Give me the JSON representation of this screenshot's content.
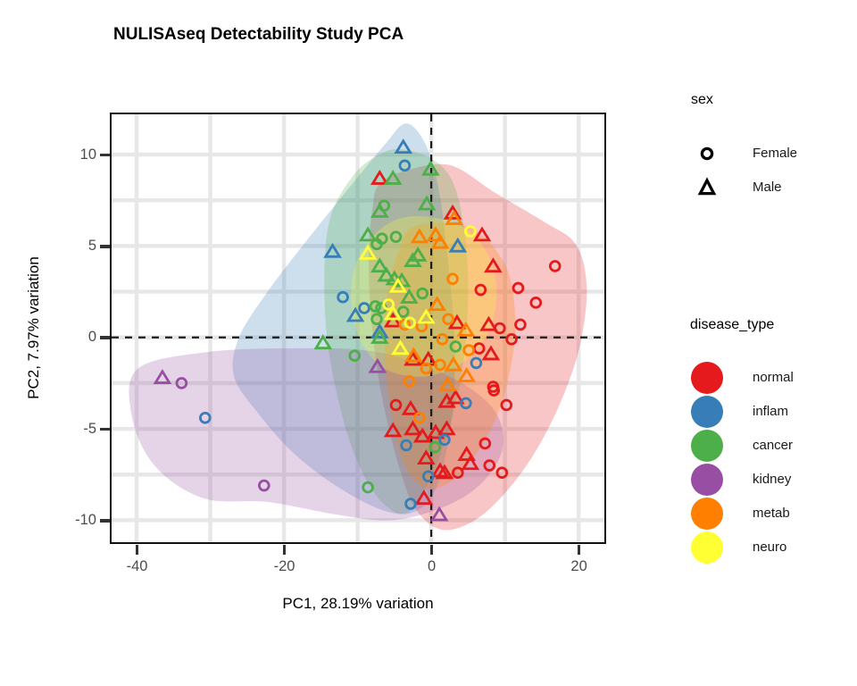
{
  "title": "NULISAseq Detectability Study PCA",
  "axes": {
    "x": {
      "label": "PC1, 28.19% variation",
      "ticks": [
        -40,
        -20,
        0,
        20
      ],
      "grid_ticks": [
        -40,
        -30,
        -20,
        -10,
        0,
        10,
        20
      ],
      "range": [
        -43.4,
        23.5
      ]
    },
    "y": {
      "label": "PC2, 7.97% variation",
      "ticks": [
        -10,
        -5,
        0,
        5,
        10
      ],
      "grid_ticks": [
        -10,
        -7.5,
        -5,
        -2.5,
        0,
        2.5,
        5,
        7.5,
        10
      ],
      "range": [
        -11.2,
        12.2
      ]
    }
  },
  "style": {
    "grid_color": "#E7E7E7",
    "panel_border": "#111111",
    "tick_color": "#333333",
    "tick_label_color": "#4D4D4D",
    "dashed_line_color": "#1C1C1C",
    "hull_opacity": 0.25
  },
  "legend": {
    "sex": {
      "title": "sex",
      "items": [
        {
          "label": "Female",
          "shape": "circle"
        },
        {
          "label": "Male",
          "shape": "triangle"
        }
      ]
    },
    "disease_type": {
      "title": "disease_type",
      "items": [
        {
          "label": "normal",
          "color": "#E41A1C"
        },
        {
          "label": "inflam",
          "color": "#377EB8"
        },
        {
          "label": "cancer",
          "color": "#4DAF4A"
        },
        {
          "label": "kidney",
          "color": "#984EA3"
        },
        {
          "label": "metab",
          "color": "#FF7F00"
        },
        {
          "label": "neuro",
          "color": "#FFFF33"
        }
      ]
    }
  },
  "chart_data": {
    "type": "scatter",
    "title": "NULISAseq Detectability Study PCA",
    "xlabel": "PC1, 28.19% variation",
    "ylabel": "PC2, 7.97% variation",
    "xlim": [
      -43.4,
      23.5
    ],
    "ylim": [
      -11.2,
      12.2
    ],
    "grid": "on",
    "legend_position": "right",
    "shape_legend": {
      "Female": "circle",
      "Male": "triangle"
    },
    "reference_lines": {
      "vertical_x": 0,
      "horizontal_y": 0,
      "style": "dashed"
    },
    "series": [
      {
        "name": "normal",
        "color": "#E41A1C",
        "points": [
          [
            -7.0,
            8.7,
            "t"
          ],
          [
            2.9,
            6.8,
            "t"
          ],
          [
            6.9,
            5.6,
            "t"
          ],
          [
            16.8,
            3.9,
            "c"
          ],
          [
            8.4,
            3.9,
            "t"
          ],
          [
            11.8,
            2.7,
            "c"
          ],
          [
            14.2,
            1.9,
            "c"
          ],
          [
            12.1,
            0.7,
            "c"
          ],
          [
            9.3,
            0.5,
            "c"
          ],
          [
            10.9,
            -0.1,
            "c"
          ],
          [
            8.5,
            -2.9,
            "c"
          ],
          [
            10.2,
            -3.7,
            "c"
          ],
          [
            -2.5,
            -1.2,
            "t"
          ],
          [
            -4.8,
            -3.7,
            "c"
          ],
          [
            -2.8,
            -3.9,
            "t"
          ],
          [
            3.3,
            -3.3,
            "t"
          ],
          [
            -5.2,
            -5.1,
            "t"
          ],
          [
            -2.5,
            -5.0,
            "t"
          ],
          [
            -1.2,
            -5.4,
            "t"
          ],
          [
            0.6,
            -5.2,
            "t"
          ],
          [
            2.1,
            -5.0,
            "t"
          ],
          [
            -0.7,
            -6.6,
            "t"
          ],
          [
            1.2,
            -7.3,
            "t"
          ],
          [
            7.3,
            -5.8,
            "c"
          ],
          [
            5.3,
            -6.9,
            "t"
          ],
          [
            7.9,
            -7.0,
            "c"
          ],
          [
            9.6,
            -7.4,
            "c"
          ],
          [
            1.8,
            -7.4,
            "t"
          ],
          [
            3.6,
            -7.4,
            "c"
          ],
          [
            -1.0,
            -8.8,
            "t"
          ],
          [
            4.8,
            -6.4,
            "t"
          ],
          [
            8.4,
            -2.7,
            "c"
          ],
          [
            6.5,
            -0.6,
            "c"
          ],
          [
            3.5,
            0.8,
            "t"
          ],
          [
            7.8,
            0.7,
            "t"
          ],
          [
            -0.4,
            -1.2,
            "t"
          ],
          [
            2.1,
            -3.5,
            "t"
          ],
          [
            -5.2,
            0.9,
            "t"
          ],
          [
            6.7,
            2.6,
            "c"
          ],
          [
            8.1,
            -0.9,
            "t"
          ]
        ]
      },
      {
        "name": "inflam",
        "color": "#377EB8",
        "points": [
          [
            -3.8,
            10.4,
            "t"
          ],
          [
            -3.6,
            9.4,
            "c"
          ],
          [
            -13.4,
            4.7,
            "t"
          ],
          [
            -12.0,
            2.2,
            "c"
          ],
          [
            -10.3,
            1.2,
            "t"
          ],
          [
            -9.1,
            1.6,
            "c"
          ],
          [
            -7.0,
            0.3,
            "t"
          ],
          [
            -30.7,
            -4.4,
            "c"
          ],
          [
            4.7,
            -3.6,
            "c"
          ],
          [
            -3.4,
            -5.9,
            "c"
          ],
          [
            -0.4,
            -7.6,
            "c"
          ],
          [
            -2.8,
            -9.1,
            "c"
          ],
          [
            1.8,
            -5.6,
            "c"
          ],
          [
            3.6,
            5.0,
            "t"
          ],
          [
            6.1,
            -1.4,
            "c"
          ]
        ]
      },
      {
        "name": "cancer",
        "color": "#4DAF4A",
        "points": [
          [
            -5.2,
            8.7,
            "t"
          ],
          [
            -0.1,
            9.2,
            "t"
          ],
          [
            -6.4,
            7.2,
            "c"
          ],
          [
            -7.0,
            6.9,
            "t"
          ],
          [
            -0.6,
            7.3,
            "t"
          ],
          [
            -8.6,
            5.6,
            "t"
          ],
          [
            -6.7,
            5.4,
            "c"
          ],
          [
            -4.8,
            5.5,
            "c"
          ],
          [
            -7.4,
            5.1,
            "c"
          ],
          [
            -7.0,
            3.9,
            "t"
          ],
          [
            -6.1,
            3.4,
            "t"
          ],
          [
            -5.0,
            3.2,
            "t"
          ],
          [
            -4.0,
            3.1,
            "t"
          ],
          [
            -2.5,
            4.2,
            "t"
          ],
          [
            -1.8,
            4.5,
            "t"
          ],
          [
            -3.0,
            2.2,
            "t"
          ],
          [
            -7.6,
            1.7,
            "c"
          ],
          [
            -6.8,
            1.6,
            "c"
          ],
          [
            -7.4,
            1.0,
            "c"
          ],
          [
            -14.7,
            -0.3,
            "t"
          ],
          [
            -7.0,
            0.0,
            "t"
          ],
          [
            -10.4,
            -1.0,
            "c"
          ],
          [
            -8.6,
            -8.2,
            "c"
          ],
          [
            0.5,
            -6.0,
            "c"
          ],
          [
            -1.2,
            2.4,
            "c"
          ],
          [
            -3.8,
            1.4,
            "c"
          ],
          [
            3.3,
            -0.5,
            "c"
          ]
        ]
      },
      {
        "name": "kidney",
        "color": "#984EA3",
        "points": [
          [
            -36.5,
            -2.2,
            "t"
          ],
          [
            -33.9,
            -2.5,
            "c"
          ],
          [
            -22.7,
            -8.1,
            "c"
          ],
          [
            -7.3,
            -1.6,
            "t"
          ],
          [
            1.1,
            -9.7,
            "t"
          ]
        ]
      },
      {
        "name": "metab",
        "color": "#FF7F00",
        "points": [
          [
            -1.6,
            5.5,
            "t"
          ],
          [
            0.6,
            5.6,
            "t"
          ],
          [
            3.1,
            6.5,
            "t"
          ],
          [
            1.2,
            5.2,
            "t"
          ],
          [
            -0.7,
            -1.7,
            "c"
          ],
          [
            -3.0,
            -2.4,
            "c"
          ],
          [
            -1.6,
            -4.4,
            "c"
          ],
          [
            -3.6,
            0.7,
            "c"
          ],
          [
            3.0,
            -1.5,
            "t"
          ],
          [
            4.8,
            -2.1,
            "t"
          ],
          [
            2.2,
            -2.6,
            "t"
          ],
          [
            2.9,
            3.2,
            "c"
          ],
          [
            2.3,
            1.0,
            "c"
          ],
          [
            1.5,
            -0.1,
            "c"
          ],
          [
            5.1,
            -0.7,
            "c"
          ],
          [
            -1.3,
            0.6,
            "c"
          ],
          [
            0.8,
            1.8,
            "t"
          ],
          [
            1.2,
            -1.5,
            "c"
          ],
          [
            4.7,
            0.4,
            "t"
          ],
          [
            -2.4,
            -1.0,
            "t"
          ]
        ]
      },
      {
        "name": "neuro",
        "color": "#FFFF33",
        "points": [
          [
            -8.6,
            4.6,
            "t"
          ],
          [
            -5.8,
            1.8,
            "c"
          ],
          [
            -5.2,
            1.3,
            "t"
          ],
          [
            -2.9,
            0.8,
            "c"
          ],
          [
            -0.7,
            1.1,
            "t"
          ],
          [
            5.3,
            5.8,
            "c"
          ],
          [
            -4.2,
            -0.6,
            "t"
          ],
          [
            -4.5,
            2.8,
            "t"
          ]
        ]
      }
    ],
    "hulls": [
      {
        "name": "normal",
        "color": "#E41A1C",
        "polygon": [
          [
            -7.0,
            8.4
          ],
          [
            -2.8,
            9.2
          ],
          [
            2.7,
            9.4
          ],
          [
            8.7,
            7.9
          ],
          [
            15.4,
            6.3
          ],
          [
            19.6,
            5.1
          ],
          [
            21.1,
            2.8
          ],
          [
            20.2,
            -0.4
          ],
          [
            17.6,
            -3.5
          ],
          [
            13.9,
            -6.4
          ],
          [
            9.6,
            -8.7
          ],
          [
            5.5,
            -10.1
          ],
          [
            1.3,
            -10.5
          ],
          [
            -2.1,
            -9.4
          ],
          [
            -4.2,
            -7.3
          ],
          [
            -5.8,
            -4.9
          ],
          [
            -7.2,
            -2.1
          ],
          [
            -8.2,
            1.3
          ],
          [
            -8.5,
            4.5
          ],
          [
            -8.0,
            7.0
          ]
        ]
      },
      {
        "name": "inflam",
        "color": "#377EB8",
        "polygon": [
          [
            -3.4,
            11.7
          ],
          [
            -0.7,
            10.5
          ],
          [
            1.1,
            7.9
          ],
          [
            2.3,
            4.0
          ],
          [
            3.2,
            -0.4
          ],
          [
            2.8,
            -4.4
          ],
          [
            0.8,
            -8.1
          ],
          [
            -2.1,
            -9.5
          ],
          [
            -6.2,
            -9.5
          ],
          [
            -12.2,
            -8.3
          ],
          [
            -18.5,
            -6.4
          ],
          [
            -23.6,
            -4.1
          ],
          [
            -26.8,
            -2.1
          ],
          [
            -26.1,
            0.0
          ],
          [
            -22.4,
            2.4
          ],
          [
            -17.3,
            5.1
          ],
          [
            -10.7,
            8.4
          ],
          [
            -6.4,
            10.5
          ]
        ]
      },
      {
        "name": "cancer",
        "color": "#4DAF4A",
        "polygon": [
          [
            -4.4,
            10.3
          ],
          [
            -0.1,
            9.8
          ],
          [
            2.8,
            8.6
          ],
          [
            4.4,
            6.1
          ],
          [
            5.0,
            2.7
          ],
          [
            4.4,
            -1.2
          ],
          [
            2.7,
            -4.6
          ],
          [
            -0.1,
            -7.7
          ],
          [
            -3.3,
            -9.6
          ],
          [
            -6.7,
            -9.0
          ],
          [
            -9.8,
            -7.0
          ],
          [
            -12.2,
            -4.1
          ],
          [
            -14.1,
            -0.2
          ],
          [
            -14.5,
            3.7
          ],
          [
            -13.6,
            6.7
          ],
          [
            -10.5,
            8.9
          ],
          [
            -7.5,
            9.9
          ]
        ]
      },
      {
        "name": "kidney",
        "color": "#984EA3",
        "polygon": [
          [
            -39.8,
            -1.7
          ],
          [
            -30.4,
            -0.8
          ],
          [
            -18.5,
            -0.6
          ],
          [
            -7.4,
            -0.8
          ],
          [
            2.3,
            -2.1
          ],
          [
            8.4,
            -3.9
          ],
          [
            9.7,
            -6.0
          ],
          [
            7.0,
            -7.9
          ],
          [
            2.1,
            -9.2
          ],
          [
            -5.2,
            -10.0
          ],
          [
            -12.7,
            -9.7
          ],
          [
            -22.2,
            -9.0
          ],
          [
            -30.9,
            -8.8
          ],
          [
            -37.6,
            -7.0
          ],
          [
            -40.7,
            -4.2
          ]
        ]
      },
      {
        "name": "metab",
        "color": "#FF7F00",
        "polygon": [
          [
            -2.2,
            6.1
          ],
          [
            5.3,
            6.0
          ],
          [
            10.1,
            3.9
          ],
          [
            11.4,
            0.9
          ],
          [
            10.5,
            -2.2
          ],
          [
            8.0,
            -5.1
          ],
          [
            3.8,
            -7.5
          ],
          [
            -0.5,
            -8.3
          ],
          [
            -3.6,
            -7.0
          ],
          [
            -5.3,
            -4.5
          ],
          [
            -6.3,
            -1.1
          ],
          [
            -5.9,
            2.4
          ],
          [
            -4.5,
            4.6
          ]
        ]
      },
      {
        "name": "neuro",
        "color": "#FFFF33",
        "polygon": [
          [
            -3.2,
            6.6
          ],
          [
            2.9,
            6.3
          ],
          [
            7.0,
            5.0
          ],
          [
            8.8,
            3.0
          ],
          [
            8.2,
            0.8
          ],
          [
            5.2,
            -1.1
          ],
          [
            -0.2,
            -2.1
          ],
          [
            -5.9,
            -1.8
          ],
          [
            -9.3,
            -0.4
          ],
          [
            -10.8,
            1.6
          ],
          [
            -10.4,
            3.8
          ],
          [
            -7.5,
            5.7
          ]
        ]
      }
    ]
  }
}
